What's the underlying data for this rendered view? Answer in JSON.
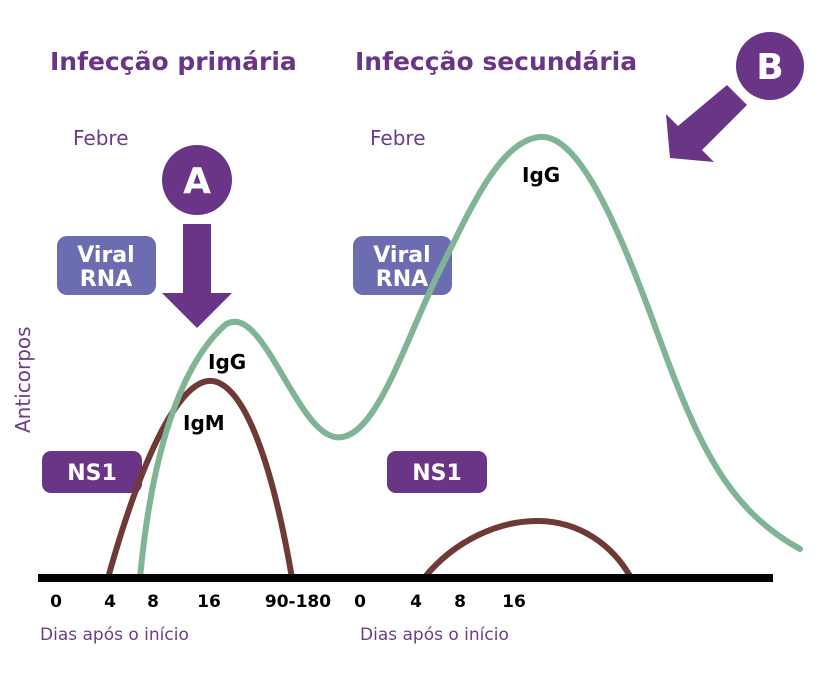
{
  "colors": {
    "purple": "#6b3587",
    "text_purple": "#6b3d8a",
    "blue_badge": "#6b6db0",
    "igg_green": "#7fb594",
    "igm_brown": "#6e3a36",
    "axis": "#000000",
    "white": "#ffffff"
  },
  "primary": {
    "title": "Infecção primária",
    "fever": "Febre",
    "marker": "A",
    "viral_rna": [
      "Viral",
      "RNA"
    ],
    "ns1": "NS1",
    "igg": "IgG",
    "igm": "IgM",
    "ticks": [
      "0",
      "4",
      "8",
      "16",
      "90-180"
    ],
    "xlabel": "Dias após o início"
  },
  "secondary": {
    "title": "Infecção secundária",
    "fever": "Febre",
    "marker": "B",
    "viral_rna": [
      "Viral",
      "RNA"
    ],
    "ns1": "NS1",
    "igg": "IgG",
    "ticks": [
      "0",
      "4",
      "8",
      "16"
    ],
    "xlabel": "Dias após o início"
  },
  "ylabel": "Anticorpos",
  "icons": {
    "marker_a_arrow": "arrow-down-icon",
    "marker_b_arrow": "arrow-down-left-icon"
  }
}
